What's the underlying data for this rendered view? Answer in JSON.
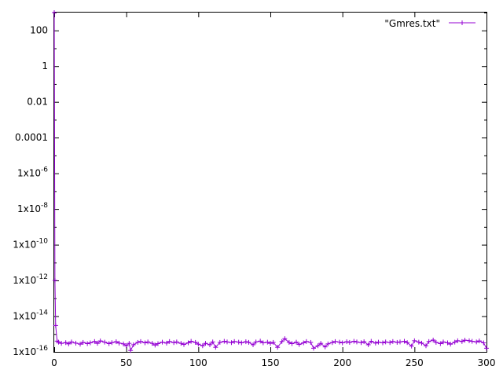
{
  "chart_data": {
    "type": "line",
    "title": "",
    "xlabel": "",
    "ylabel": "",
    "xlim": [
      0,
      300
    ],
    "ylim": [
      1e-16,
      1000
    ],
    "yscale": "log",
    "grid": false,
    "legend_position": "top-right",
    "x_ticks": [
      0,
      50,
      100,
      150,
      200,
      250,
      300
    ],
    "x_tick_labels": [
      "0",
      "50",
      "100",
      "150",
      "200",
      "250",
      "300"
    ],
    "y_ticks": [
      100,
      1,
      0.01,
      0.0001,
      1e-06,
      1e-08,
      1e-10,
      1e-12,
      1e-14,
      1e-16
    ],
    "y_tick_labels": [
      {
        "mantissa": "100",
        "exp": ""
      },
      {
        "mantissa": "1",
        "exp": ""
      },
      {
        "mantissa": "0.01",
        "exp": ""
      },
      {
        "mantissa": "0.0001",
        "exp": ""
      },
      {
        "mantissa": "1x10",
        "exp": "-6"
      },
      {
        "mantissa": "1x10",
        "exp": "-8"
      },
      {
        "mantissa": "1x10",
        "exp": "-10"
      },
      {
        "mantissa": "1x10",
        "exp": "-12"
      },
      {
        "mantissa": "1x10",
        "exp": "-14"
      },
      {
        "mantissa": "1x10",
        "exp": "-16"
      }
    ],
    "series": [
      {
        "name": "\"Gmres.txt\"",
        "color": "#9400d3",
        "marker": "plus",
        "x": [
          0,
          0.5,
          1,
          2,
          3,
          5,
          8,
          10,
          12,
          15,
          18,
          20,
          23,
          25,
          28,
          30,
          32,
          35,
          38,
          40,
          43,
          45,
          48,
          50,
          52,
          53,
          55,
          58,
          60,
          63,
          65,
          68,
          70,
          72,
          75,
          78,
          80,
          83,
          85,
          88,
          90,
          93,
          95,
          98,
          100,
          103,
          105,
          108,
          110,
          112,
          115,
          118,
          120,
          123,
          125,
          128,
          130,
          133,
          135,
          138,
          140,
          143,
          145,
          148,
          150,
          152,
          155,
          158,
          160,
          163,
          165,
          168,
          170,
          173,
          175,
          178,
          180,
          183,
          185,
          188,
          190,
          193,
          195,
          198,
          200,
          203,
          205,
          208,
          210,
          213,
          215,
          218,
          220,
          223,
          225,
          228,
          230,
          233,
          235,
          238,
          240,
          243,
          245,
          248,
          250,
          253,
          255,
          258,
          260,
          263,
          265,
          268,
          270,
          273,
          275,
          278,
          280,
          283,
          285,
          288,
          290,
          293,
          295,
          298,
          300
        ],
        "y": [
          1000,
          1e-12,
          3e-15,
          4e-16,
          3.5e-16,
          3e-16,
          3.3e-16,
          2.8e-16,
          3.6e-16,
          3.1e-16,
          2.7e-16,
          3.4e-16,
          2.9e-16,
          3.2e-16,
          3.8e-16,
          3e-16,
          4.1e-16,
          3.5e-16,
          2.9e-16,
          3.3e-16,
          3.7e-16,
          3.1e-16,
          2.8e-16,
          2.2e-16,
          3e-16,
          1.2e-16,
          2.5e-16,
          3.4e-16,
          3.8e-16,
          3.2e-16,
          3.6e-16,
          3e-16,
          2.4e-16,
          2.9e-16,
          3.5e-16,
          3.1e-16,
          3.8e-16,
          3.3e-16,
          3.6e-16,
          3e-16,
          2.6e-16,
          3.2e-16,
          3.9e-16,
          3.4e-16,
          2.7e-16,
          2.2e-16,
          3e-16,
          2.5e-16,
          3.6e-16,
          1.8e-16,
          3.4e-16,
          3.9e-16,
          3.6e-16,
          3.3e-16,
          3.8e-16,
          3.5e-16,
          3.2e-16,
          3.7e-16,
          3.4e-16,
          2.5e-16,
          3.6e-16,
          4e-16,
          3.2e-16,
          3.5e-16,
          3e-16,
          3.4e-16,
          1.8e-16,
          3.8e-16,
          5.5e-16,
          3.4e-16,
          2.9e-16,
          3.5e-16,
          2.6e-16,
          3.2e-16,
          3.8e-16,
          3.4e-16,
          1.6e-16,
          2.2e-16,
          3e-16,
          1.9e-16,
          2.8e-16,
          3.3e-16,
          3.8e-16,
          3.5e-16,
          3.2e-16,
          3.7e-16,
          3.4e-16,
          3.9e-16,
          3.6e-16,
          3.3e-16,
          3.7e-16,
          2.5e-16,
          3.9e-16,
          3.1e-16,
          3.5e-16,
          3.2e-16,
          3.6e-16,
          3.3e-16,
          3.8e-16,
          3.4e-16,
          3.6e-16,
          3.9e-16,
          3.3e-16,
          2.1e-16,
          4.2e-16,
          3.5e-16,
          3.1e-16,
          2.2e-16,
          3.8e-16,
          4.6e-16,
          3.4e-16,
          2.9e-16,
          3.6e-16,
          3.2e-16,
          2.7e-16,
          3.5e-16,
          4.2e-16,
          3.8e-16,
          4.5e-16,
          4.2e-16,
          3.9e-16,
          3.6e-16,
          4.1e-16,
          3.2e-16,
          1.6e-16
        ]
      }
    ]
  }
}
